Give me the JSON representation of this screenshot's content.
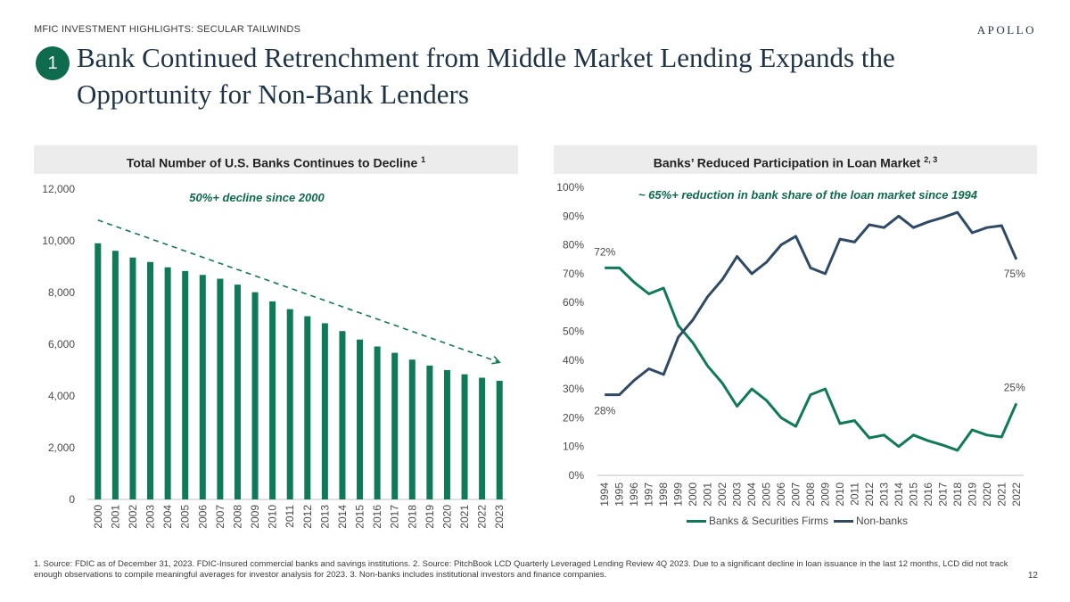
{
  "header": {
    "kicker": "MFIC INVESTMENT HIGHLIGHTS:  SECULAR TAILWINDS",
    "brand": "APOLLO",
    "badge": "1",
    "title": "Bank Continued Retrenchment from Middle Market Lending Expands the Opportunity for Non-Bank Lenders"
  },
  "chart_data": [
    {
      "type": "bar",
      "title": "Total Number of U.S. Banks Continues to Decline",
      "title_sup": "1",
      "annotation": "50%+ decline since 2000",
      "categories": [
        "2000",
        "2001",
        "2002",
        "2003",
        "2004",
        "2005",
        "2006",
        "2007",
        "2008",
        "2009",
        "2010",
        "2011",
        "2012",
        "2013",
        "2014",
        "2015",
        "2016",
        "2017",
        "2018",
        "2019",
        "2020",
        "2021",
        "2022",
        "2023"
      ],
      "values": [
        9905,
        9613,
        9354,
        9181,
        8976,
        8833,
        8681,
        8534,
        8305,
        8012,
        7658,
        7357,
        7083,
        6812,
        6509,
        6182,
        5913,
        5670,
        5406,
        5177,
        5002,
        4839,
        4706,
        4587
      ],
      "ylim": [
        0,
        12000
      ],
      "yticks": [
        0,
        2000,
        4000,
        6000,
        8000,
        10000,
        12000
      ],
      "ytick_labels": [
        "0",
        "2,000",
        "4,000",
        "6,000",
        "8,000",
        "10,000",
        "12,000"
      ],
      "trend_arrow": {
        "from": [
          0,
          10800
        ],
        "to": [
          23,
          5300
        ]
      },
      "color": "#0e7a57"
    },
    {
      "type": "line",
      "title": "Banks’ Reduced Participation in Loan Market",
      "title_sup": "2, 3",
      "annotation": "~ 65%+ reduction in bank share of the loan market since 1994",
      "x": [
        "1994",
        "1995",
        "1996",
        "1997",
        "1998",
        "1999",
        "2000",
        "2001",
        "2002",
        "2003",
        "2004",
        "2005",
        "2006",
        "2007",
        "2008",
        "2009",
        "2010",
        "2011",
        "2012",
        "2013",
        "2014",
        "2015",
        "2016",
        "2017",
        "2018",
        "2019",
        "2020",
        "2021",
        "2022"
      ],
      "series": [
        {
          "name": "Banks & Securities Firms",
          "color": "#0e7a57",
          "values": [
            72,
            72,
            67,
            63,
            65,
            52,
            46,
            38,
            32,
            24,
            30,
            26,
            20,
            17,
            28,
            30,
            18,
            19,
            13,
            14,
            10,
            14,
            12,
            10.5,
            8.7,
            15.8,
            14,
            13.3,
            25
          ]
        },
        {
          "name": "Non-banks",
          "color": "#2e4a66",
          "values": [
            28,
            28,
            33,
            37,
            35,
            48,
            54,
            62,
            68,
            76,
            70,
            74,
            80,
            83,
            72,
            70,
            82,
            81,
            87,
            86,
            90,
            86,
            88,
            89.5,
            91.3,
            84.2,
            86,
            86.7,
            75
          ]
        }
      ],
      "ylim": [
        0,
        100
      ],
      "yticks": [
        0,
        10,
        20,
        30,
        40,
        50,
        60,
        70,
        80,
        90,
        100
      ],
      "ytick_labels": [
        "0%",
        "10%",
        "20%",
        "30%",
        "40%",
        "50%",
        "60%",
        "70%",
        "80%",
        "90%",
        "100%"
      ],
      "data_labels": [
        {
          "text": "72%",
          "series": 0,
          "index": 0
        },
        {
          "text": "28%",
          "series": 1,
          "index": 0
        },
        {
          "text": "75%",
          "series": 1,
          "index": 28
        },
        {
          "text": "25%",
          "series": 0,
          "index": 28
        }
      ]
    }
  ],
  "legend": [
    "Banks & Securities Firms",
    "Non-banks"
  ],
  "footnote": "1.  Source:  FDIC as of December 31, 2023.  FDIC-Insured commercial banks and savings institutions.  2.  Source:  PitchBook LCD Quarterly Leveraged Lending Review 4Q 2023. Due to a significant decline in loan issuance in the last 12 months, LCD did not track enough observations to compile meaningful averages for investor analysis for 2023.  3.  Non-banks includes institutional investors and finance companies.",
  "page_number": "12"
}
